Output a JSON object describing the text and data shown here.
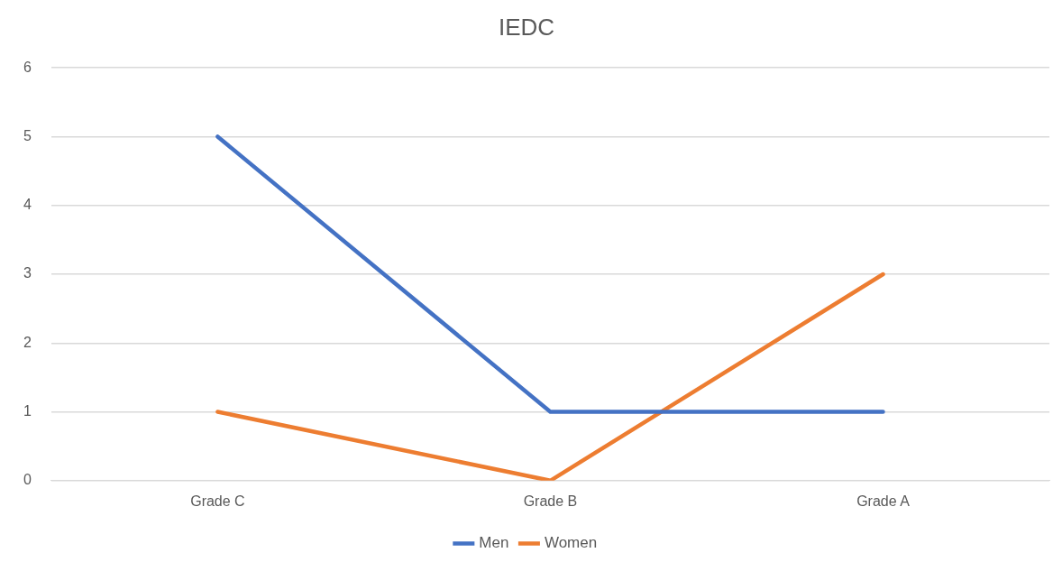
{
  "chart_data": {
    "type": "line",
    "title": "IEDC",
    "categories": [
      "Grade C",
      "Grade B",
      "Grade A"
    ],
    "series": [
      {
        "name": "Men",
        "color": "#4472c4",
        "values": [
          5,
          1,
          1
        ]
      },
      {
        "name": "Women",
        "color": "#ed7d31",
        "values": [
          1,
          0,
          3
        ]
      }
    ],
    "ylim": [
      0,
      6
    ],
    "yticks": [
      0,
      1,
      2,
      3,
      4,
      5,
      6
    ],
    "grid": "y",
    "legend": "bottom",
    "marker": "none",
    "line_style": "solid"
  }
}
